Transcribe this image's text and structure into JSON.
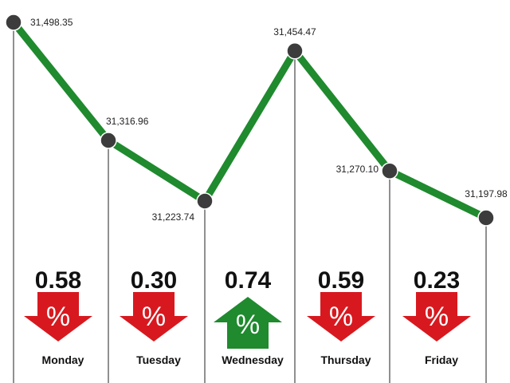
{
  "chart_data": {
    "type": "line",
    "categories": [
      "Monday",
      "Tuesday",
      "Wednesday",
      "Thursday",
      "Friday"
    ],
    "points": [
      {
        "label": "31,498.35",
        "value": 31498.35
      },
      {
        "label": "31,316.96",
        "value": 31316.96
      },
      {
        "label": "31,223.74",
        "value": 31223.74
      },
      {
        "label": "31,454.47",
        "value": 31454.47
      },
      {
        "label": "31,270.10",
        "value": 31270.1
      },
      {
        "label": "31,197.98",
        "value": 31197.98
      }
    ],
    "daily_change": [
      {
        "day": "Monday",
        "percent": "0.58",
        "direction": "down"
      },
      {
        "day": "Tuesday",
        "percent": "0.30",
        "direction": "down"
      },
      {
        "day": "Wednesday",
        "percent": "0.74",
        "direction": "up"
      },
      {
        "day": "Thursday",
        "percent": "0.59",
        "direction": "down"
      },
      {
        "day": "Friday",
        "percent": "0.23",
        "direction": "down"
      }
    ],
    "percent_symbol": "%",
    "ylim": [
      31197.98,
      31498.35
    ],
    "grid": false,
    "colors": {
      "line": "#1f8a2e",
      "marker": "#3c3c3c",
      "up_arrow": "#1f8a2e",
      "down_arrow": "#d7191f",
      "guide": "#222222"
    }
  }
}
